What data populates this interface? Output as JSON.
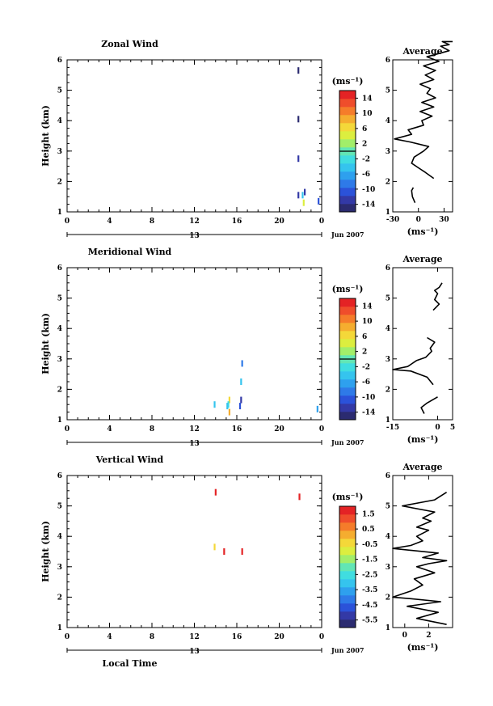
{
  "chart_data": [
    {
      "type": "heatmap",
      "title": "Zonal Wind",
      "ylabel": "Height (km)",
      "xlabel": "",
      "xlim": [
        0,
        24
      ],
      "ylim": [
        1,
        6
      ],
      "xticks": [
        "0",
        "4",
        "8",
        "12",
        "16",
        "20",
        "0"
      ],
      "yticks": [
        "1",
        "2",
        "3",
        "4",
        "5",
        "6"
      ],
      "day_label": "13",
      "date_label": "Jun 2007",
      "colorbar": {
        "unit": "(ms⁻¹)",
        "min": -16,
        "max": 16,
        "zero": 0,
        "ticks": [
          "14",
          "10",
          "6",
          "2",
          "-2",
          "-6",
          "-10",
          "-14"
        ]
      },
      "points": [
        {
          "x": 21.8,
          "y": 5.65,
          "v": -14
        },
        {
          "x": 21.8,
          "y": 4.05,
          "v": -14
        },
        {
          "x": 21.8,
          "y": 2.75,
          "v": -12
        },
        {
          "x": 21.8,
          "y": 1.55,
          "v": -12
        },
        {
          "x": 22.2,
          "y": 1.55,
          "v": -4
        },
        {
          "x": 22.4,
          "y": 1.65,
          "v": -12
        },
        {
          "x": 22.3,
          "y": 1.3,
          "v": 4
        },
        {
          "x": 23.7,
          "y": 1.35,
          "v": -10
        }
      ],
      "average": {
        "title": "Average",
        "xlabel": "(ms⁻¹)",
        "xlim": [
          -30,
          40
        ],
        "xticks": [
          "-30",
          "0",
          "30"
        ],
        "profile": [
          [
            -4,
            1.3
          ],
          [
            -7,
            1.5
          ],
          [
            -8,
            1.7
          ],
          [
            -6,
            1.8
          ],
          [
            null,
            1.95
          ],
          [
            18,
            2.1
          ],
          [
            8,
            2.3
          ],
          [
            0,
            2.45
          ],
          [
            -8,
            2.6
          ],
          [
            -5,
            2.8
          ],
          [
            6,
            3.0
          ],
          [
            12,
            3.15
          ],
          [
            -10,
            3.3
          ],
          [
            -28,
            3.4
          ],
          [
            -8,
            3.55
          ],
          [
            -12,
            3.7
          ],
          [
            6,
            3.85
          ],
          [
            4,
            4.0
          ],
          [
            16,
            4.15
          ],
          [
            2,
            4.3
          ],
          [
            18,
            4.45
          ],
          [
            4,
            4.6
          ],
          [
            20,
            4.75
          ],
          [
            10,
            4.9
          ],
          [
            14,
            5.05
          ],
          [
            2,
            5.2
          ],
          [
            18,
            5.35
          ],
          [
            8,
            5.5
          ],
          [
            20,
            5.65
          ],
          [
            6,
            5.8
          ],
          [
            24,
            5.95
          ],
          [
            10,
            6.1
          ],
          [
            36,
            6.3
          ],
          [
            26,
            6.45
          ],
          [
            36,
            6.5
          ],
          [
            28,
            6.6
          ],
          [
            40,
            6.6
          ]
        ]
      }
    },
    {
      "type": "heatmap",
      "title": "Meridional Wind",
      "ylabel": "Height (km)",
      "xlabel": "",
      "xlim": [
        0,
        24
      ],
      "ylim": [
        1,
        6
      ],
      "xticks": [
        "0",
        "4",
        "8",
        "12",
        "16",
        "20",
        "0"
      ],
      "yticks": [
        "1",
        "2",
        "3",
        "4",
        "5",
        "6"
      ],
      "day_label": "13",
      "date_label": "Jun 2007",
      "colorbar": {
        "unit": "(ms⁻¹)",
        "min": -16,
        "max": 16,
        "zero": 0,
        "ticks": [
          "14",
          "10",
          "6",
          "2",
          "-2",
          "-6",
          "-10",
          "-14"
        ]
      },
      "points": [
        {
          "x": 16.5,
          "y": 2.85,
          "v": -8
        },
        {
          "x": 16.4,
          "y": 2.25,
          "v": -4
        },
        {
          "x": 16.4,
          "y": 1.65,
          "v": -12
        },
        {
          "x": 16.3,
          "y": 1.45,
          "v": -10
        },
        {
          "x": 15.3,
          "y": 1.65,
          "v": 6
        },
        {
          "x": 15.2,
          "y": 1.5,
          "v": -2
        },
        {
          "x": 15.1,
          "y": 1.45,
          "v": -4
        },
        {
          "x": 15.3,
          "y": 1.25,
          "v": 8
        },
        {
          "x": 13.9,
          "y": 1.5,
          "v": -4
        },
        {
          "x": 23.6,
          "y": 1.35,
          "v": -6
        }
      ],
      "average": {
        "title": "Average",
        "xlabel": "(ms⁻¹)",
        "xlim": [
          -15,
          5
        ],
        "xticks": [
          "-15",
          "0",
          "5"
        ],
        "profile": [
          [
            -4.5,
            1.2
          ],
          [
            -5.5,
            1.4
          ],
          [
            -3.5,
            1.55
          ],
          [
            0,
            1.75
          ],
          [
            null,
            1.9
          ],
          [
            -1.5,
            2.15
          ],
          [
            -3.5,
            2.4
          ],
          [
            -9,
            2.6
          ],
          [
            -15,
            2.65
          ],
          [
            -10,
            2.75
          ],
          [
            -7,
            2.95
          ],
          [
            -4,
            3.05
          ],
          [
            -2,
            3.25
          ],
          [
            -2.5,
            3.35
          ],
          [
            -1,
            3.55
          ],
          [
            -3.5,
            3.7
          ],
          [
            null,
            3.9
          ],
          [
            -1.5,
            4.6
          ],
          [
            0.5,
            4.8
          ],
          [
            -1,
            4.95
          ],
          [
            0,
            5.15
          ],
          [
            -1,
            5.25
          ],
          [
            0.5,
            5.35
          ],
          [
            1.5,
            5.5
          ]
        ]
      }
    },
    {
      "type": "heatmap",
      "title": "Vertical Wind",
      "ylabel": "Height (km)",
      "xlabel": "Local Time",
      "xlim": [
        0,
        24
      ],
      "ylim": [
        1,
        6
      ],
      "xticks": [
        "0",
        "4",
        "8",
        "12",
        "16",
        "20",
        "0"
      ],
      "yticks": [
        "1",
        "2",
        "3",
        "4",
        "5",
        "6"
      ],
      "day_label": "13",
      "date_label": "Jun 2007",
      "colorbar": {
        "unit": "(ms⁻¹)",
        "min": -6.0,
        "max": 2.0,
        "zero": null,
        "ticks": [
          "1.5",
          "0.5",
          "-0.5",
          "-1.5",
          "-2.5",
          "-3.5",
          "-4.5",
          "-5.5"
        ]
      },
      "points": [
        {
          "x": 14.0,
          "y": 5.45,
          "v": 1.8
        },
        {
          "x": 21.9,
          "y": 5.3,
          "v": 1.6
        },
        {
          "x": 13.9,
          "y": 3.65,
          "v": -0.5
        },
        {
          "x": 14.8,
          "y": 3.5,
          "v": 1.6
        },
        {
          "x": 16.5,
          "y": 3.5,
          "v": 1.6
        }
      ],
      "average": {
        "title": "Average",
        "xlabel": "(ms⁻¹)",
        "xlim": [
          -1,
          4
        ],
        "xticks": [
          "0",
          "2"
        ],
        "profile": [
          [
            3.5,
            1.1
          ],
          [
            1.0,
            1.3
          ],
          [
            2.8,
            1.5
          ],
          [
            0.2,
            1.7
          ],
          [
            3.0,
            1.85
          ],
          [
            0.5,
            1.95
          ],
          [
            -1.0,
            2.0
          ],
          [
            0.5,
            2.2
          ],
          [
            1.5,
            2.4
          ],
          [
            0.8,
            2.6
          ],
          [
            2.5,
            2.8
          ],
          [
            1.0,
            3.0
          ],
          [
            2.0,
            3.1
          ],
          [
            3.5,
            3.2
          ],
          [
            1.5,
            3.3
          ],
          [
            2.8,
            3.45
          ],
          [
            -1.0,
            3.6
          ],
          [
            0.5,
            3.7
          ],
          [
            1.5,
            3.85
          ],
          [
            1.0,
            4.0
          ],
          [
            2.0,
            4.2
          ],
          [
            1.0,
            4.3
          ],
          [
            2.2,
            4.5
          ],
          [
            1.5,
            4.6
          ],
          [
            2.5,
            4.8
          ],
          [
            -0.2,
            5.0
          ],
          [
            2.5,
            5.2
          ],
          [
            3.5,
            5.45
          ]
        ]
      }
    }
  ]
}
